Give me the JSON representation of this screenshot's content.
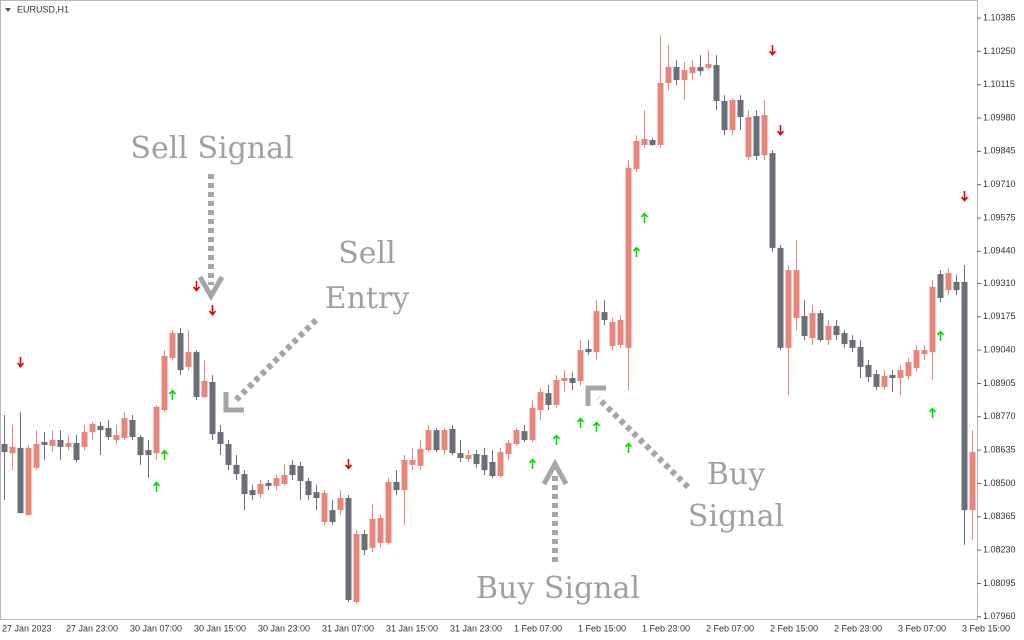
{
  "chart_data": {
    "type": "candlestick",
    "symbol": "EURUSD,H1",
    "categories": [
      "27 Jan 2023",
      null,
      null,
      null,
      null,
      null,
      null,
      null,
      "27 Jan 23:00",
      null,
      null,
      null,
      null,
      null,
      null,
      null,
      "30 Jan 07:00",
      null,
      null,
      null,
      null,
      null,
      null,
      null,
      "30 Jan 15:00",
      null,
      null,
      null,
      null,
      null,
      null,
      null,
      "30 Jan 23:00",
      null,
      null,
      null,
      null,
      null,
      null,
      null,
      "31 Jan 07:00",
      null,
      null,
      null,
      null,
      null,
      null,
      null,
      "31 Jan 15:00",
      null,
      null,
      null,
      null,
      null,
      null,
      null,
      "31 Jan 23:00",
      null,
      null,
      null,
      null,
      null,
      null,
      null,
      "1 Feb 07:00",
      null,
      null,
      null,
      null,
      null,
      null,
      null,
      "1 Feb 15:00",
      null,
      null,
      null,
      null,
      null,
      null,
      null,
      "1 Feb 23:00",
      null,
      null,
      null,
      null,
      null,
      null,
      null,
      "2 Feb 07:00",
      null,
      null,
      null,
      null,
      null,
      null,
      null,
      "2 Feb 15:00",
      null,
      null,
      null,
      null,
      null,
      null,
      null,
      "2 Feb 23:00",
      null,
      null,
      null,
      null,
      null,
      null,
      null,
      "3 Feb 07:00",
      null,
      null,
      null,
      null,
      null,
      null,
      null,
      "3 Feb 15:00",
      null
    ],
    "open": [
      1.0866,
      1.08623,
      1.08644,
      1.08372,
      1.08563,
      1.08668,
      1.08652,
      1.08676,
      1.08648,
      1.08664,
      1.08648,
      1.08708,
      1.08733,
      1.08725,
      1.08676,
      1.08684,
      1.08757,
      1.08688,
      1.08635,
      1.08623,
      1.08797,
      1.09008,
      1.09109,
      1.08972,
      1.09032,
      1.0885,
      1.08911,
      1.08708,
      1.0866,
      1.08575,
      1.08538,
      1.08473,
      1.08457,
      1.08502,
      1.0849,
      1.08498,
      1.08575,
      1.08571,
      1.0851,
      1.08465,
      1.08344,
      1.08392,
      1.08392,
      1.08441,
      1.0802,
      1.08295,
      1.08239,
      1.08259,
      1.08259,
      1.08506,
      1.08473,
      1.08575,
      1.08571,
      1.08635,
      1.08716,
      1.08635,
      1.08721,
      1.08623,
      1.08599,
      1.08619,
      1.08615,
      1.08587,
      1.0853,
      1.08619,
      1.0866,
      1.08712,
      1.08676,
      1.08797,
      1.08866,
      1.08818,
      1.08915,
      1.08927,
      1.08915,
      1.09045,
      1.09032,
      1.09194,
      1.09057,
      1.09061,
      1.09049,
      1.09774,
      1.09871,
      1.09891,
      1.09871,
      1.10122,
      1.10187,
      1.10134,
      1.10162,
      1.10187,
      1.10183,
      1.10195,
      1.10049,
      1.09931,
      1.10053,
      1.09822,
      1.09988,
      1.0983,
      1.09838,
      1.09454,
      1.09049,
      1.0917,
      1.09178,
      1.09089,
      1.0919,
      1.09081,
      1.09138,
      1.09109,
      1.09081,
      1.09053,
      1.0898,
      1.08943,
      1.08891,
      1.08939,
      1.08927,
      1.08935,
      1.08968,
      1.09024,
      1.09032,
      1.09348,
      1.09283,
      1.09316,
      1.09316,
      1.08392
    ],
    "high": [
      1.08777,
      1.08737,
      1.08789,
      1.08656,
      1.08716,
      1.08708,
      1.08716,
      1.08716,
      1.08696,
      1.08696,
      1.08737,
      1.08749,
      1.08749,
      1.08757,
      1.08737,
      1.08789,
      1.08777,
      1.08696,
      1.08676,
      1.08818,
      1.0904,
      1.09121,
      1.0913,
      1.09121,
      1.0904,
      1.09,
      1.08939,
      1.08737,
      1.08676,
      1.08615,
      1.08554,
      1.08494,
      1.08514,
      1.08514,
      1.08534,
      1.08575,
      1.08595,
      1.08587,
      1.08522,
      1.08494,
      1.08473,
      1.08433,
      1.08473,
      1.08453,
      1.08311,
      1.08311,
      1.08413,
      1.08372,
      1.08522,
      1.08554,
      1.08615,
      1.08644,
      1.08676,
      1.08737,
      1.08725,
      1.08725,
      1.08737,
      1.08676,
      1.08635,
      1.08635,
      1.08644,
      1.08635,
      1.08644,
      1.08676,
      1.08725,
      1.08737,
      1.08838,
      1.08887,
      1.08899,
      1.08939,
      1.08959,
      1.08951,
      1.09081,
      1.09081,
      1.09243,
      1.09243,
      1.0917,
      1.09182,
      1.0981,
      1.09911,
      1.10012,
      1.09899,
      1.10316,
      1.10276,
      1.10215,
      1.10207,
      1.10215,
      1.10235,
      1.10255,
      1.10235,
      1.10073,
      1.10061,
      1.10073,
      1.10012,
      1.10012,
      1.10053,
      1.0985,
      1.09466,
      1.09385,
      1.09486,
      1.09243,
      1.09223,
      1.09202,
      1.09162,
      1.09162,
      1.09121,
      1.09101,
      1.09081,
      1.09,
      1.08959,
      1.08959,
      1.08959,
      1.0898,
      1.09008,
      1.09061,
      1.09061,
      1.09324,
      1.09364,
      1.09373,
      1.09344,
      1.09385,
      1.08716
    ],
    "low": [
      1.08433,
      1.08554,
      1.0838,
      1.08372,
      1.08554,
      1.08595,
      1.08627,
      1.08595,
      1.08635,
      1.08587,
      1.08635,
      1.08676,
      1.08615,
      1.08676,
      1.08656,
      1.08676,
      1.08676,
      1.08575,
      1.08522,
      1.08595,
      1.08789,
      1.09,
      1.08939,
      1.08959,
      1.08838,
      1.08846,
      1.08676,
      1.08615,
      1.08554,
      1.08514,
      1.08392,
      1.08433,
      1.08441,
      1.08473,
      1.08473,
      1.0849,
      1.08514,
      1.08433,
      1.08433,
      1.08392,
      1.08332,
      1.08332,
      1.08372,
      1.0802,
      1.08012,
      1.0821,
      1.08222,
      1.08239,
      1.08251,
      1.08453,
      1.08332,
      1.08554,
      1.08554,
      1.08627,
      1.08627,
      1.08615,
      1.08615,
      1.08587,
      1.08587,
      1.08563,
      1.08534,
      1.08522,
      1.08522,
      1.08595,
      1.08652,
      1.08668,
      1.08668,
      1.08757,
      1.08797,
      1.08806,
      1.0887,
      1.08878,
      1.08895,
      1.0902,
      1.09,
      1.09142,
      1.0904,
      1.09049,
      1.08878,
      1.09761,
      1.09859,
      1.09867,
      1.09859,
      1.10093,
      1.10114,
      1.10053,
      1.10134,
      1.10154,
      1.10174,
      1.10012,
      1.09911,
      1.09911,
      1.09931,
      1.0981,
      1.0981,
      1.0981,
      1.09437,
      1.0904,
      1.08858,
      1.09121,
      1.09081,
      1.09061,
      1.09073,
      1.09061,
      1.09081,
      1.09049,
      1.09032,
      1.08927,
      1.08911,
      1.08878,
      1.08878,
      1.0887,
      1.08858,
      1.08919,
      1.08951,
      1.09,
      1.08919,
      1.09235,
      1.09263,
      1.09263,
      1.08251,
      1.08271
    ],
    "close": [
      1.08627,
      1.08648,
      1.0838,
      1.08644,
      1.0866,
      1.08656,
      1.08676,
      1.08648,
      1.08664,
      1.08595,
      1.08708,
      1.08741,
      1.08716,
      1.08688,
      1.08696,
      1.08765,
      1.08688,
      1.08615,
      1.08615,
      1.0881,
      1.09016,
      1.09109,
      1.08959,
      1.09032,
      1.0885,
      1.08915,
      1.087,
      1.0866,
      1.08575,
      1.08538,
      1.08457,
      1.08453,
      1.08498,
      1.0849,
      1.08522,
      1.08534,
      1.08534,
      1.0851,
      1.08453,
      1.08441,
      1.08461,
      1.08344,
      1.08441,
      1.08028,
      1.08295,
      1.0823,
      1.08356,
      1.0836,
      1.08506,
      1.08473,
      1.08595,
      1.08595,
      1.0864,
      1.08716,
      1.08635,
      1.08716,
      1.08623,
      1.08603,
      1.08615,
      1.08579,
      1.08554,
      1.0853,
      1.08627,
      1.08664,
      1.08716,
      1.08676,
      1.08806,
      1.0887,
      1.08818,
      1.08919,
      1.08927,
      1.08907,
      1.0904,
      1.09032,
      1.09198,
      1.09162,
      1.09154,
      1.09162,
      1.09778,
      1.09887,
      1.09895,
      1.09871,
      1.10122,
      1.10187,
      1.10134,
      1.10174,
      1.10187,
      1.1017,
      1.10199,
      1.10049,
      1.09931,
      1.10053,
      1.09984,
      1.09984,
      1.09826,
      1.09992,
      1.09454,
      1.09049,
      1.09364,
      1.09364,
      1.09097,
      1.0919,
      1.09081,
      1.09138,
      1.09101,
      1.09065,
      1.09049,
      1.08972,
      1.08931,
      1.08891,
      1.08935,
      1.08927,
      1.08959,
      1.08992,
      1.0904,
      1.0904,
      1.09296,
      1.09251,
      1.09352,
      1.09283,
      1.08392,
      1.08627
    ],
    "up_color": "#e8857a",
    "down_color": "#6b6e76",
    "ylim": [
      1.07951,
      1.1045
    ],
    "yticks": [
      1.10385,
      {
        "value": 1.1025,
        "label": "1.10250"
      },
      1.10115,
      {
        "value": 1.0998,
        "label": "1.09980"
      },
      1.09845,
      {
        "value": 1.0971,
        "label": "1.09710"
      },
      1.09575,
      {
        "value": 1.0944,
        "label": "1.09440"
      },
      {
        "value": 1.0931,
        "label": "1.09310"
      },
      1.09175,
      {
        "value": 1.0904,
        "label": "1.09040"
      },
      1.08905,
      {
        "value": 1.0877,
        "label": "1.08770"
      },
      1.08635,
      {
        "value": 1.085,
        "label": "1.08500"
      },
      1.08365,
      {
        "value": 1.0823,
        "label": "1.08230"
      },
      1.08095,
      {
        "value": 1.0796,
        "label": "1.07960"
      }
    ],
    "sell_signals": {
      "color": "#e00000",
      "index": [
        2,
        24,
        26,
        43,
        96,
        97,
        120
      ],
      "price": [
        1.08992,
        1.093,
        1.09202,
        1.08579,
        1.10255,
        1.09931,
        1.09664
      ]
    },
    "buy_signals": {
      "color": "#00dd00",
      "index": [
        19,
        20,
        21,
        66,
        69,
        72,
        74,
        78,
        79,
        80,
        116,
        117
      ],
      "price": [
        1.08486,
        1.08615,
        1.08858,
        1.08579,
        1.08676,
        1.08745,
        1.08729,
        1.08644,
        1.09437,
        1.09575,
        1.08785,
        1.09097
      ]
    },
    "annotations": [
      [
        "Sell Signal"
      ],
      [
        "Sell",
        "Entry"
      ],
      [
        "Buy Signal"
      ],
      [
        "Buy",
        "Signal"
      ]
    ]
  }
}
